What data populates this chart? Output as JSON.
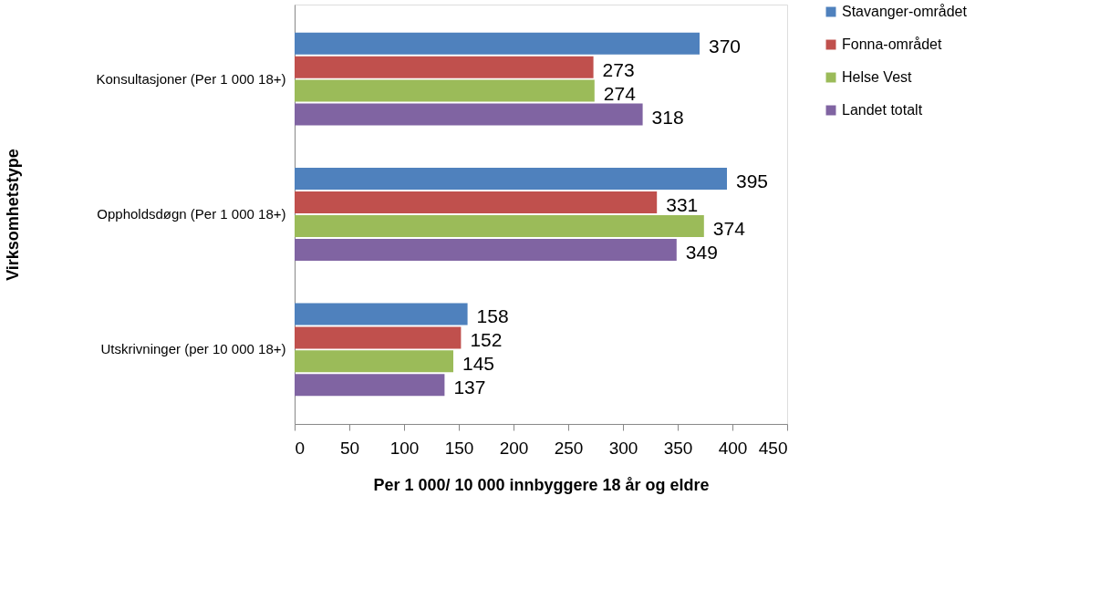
{
  "chart_data": {
    "type": "bar",
    "orientation": "horizontal",
    "xlabel": "Per 1 000/ 10 000 innbyggere 18 år og eldre",
    "ylabel": "Virksomhetstype",
    "categories": [
      "Konsultasjoner (Per 1 000 18+)",
      "Oppholdsdøgn (Per 1 000 18+)",
      "Utskrivninger (per 10 000 18+)"
    ],
    "series": [
      {
        "name": "Stavanger-området",
        "color": "#4f81bd",
        "values": [
          370,
          395,
          158
        ]
      },
      {
        "name": "Fonna-området",
        "color": "#c0504d",
        "values": [
          273,
          331,
          152
        ]
      },
      {
        "name": "Helse Vest",
        "color": "#9bbb59",
        "values": [
          274,
          374,
          145
        ]
      },
      {
        "name": "Landet totalt",
        "color": "#8064a2",
        "values": [
          318,
          349,
          137
        ]
      }
    ],
    "xlim": [
      0,
      450
    ],
    "xticks": [
      0,
      50,
      100,
      150,
      200,
      250,
      300,
      350,
      400,
      450
    ],
    "grid": false,
    "legend": "top right",
    "data_labels": true
  }
}
